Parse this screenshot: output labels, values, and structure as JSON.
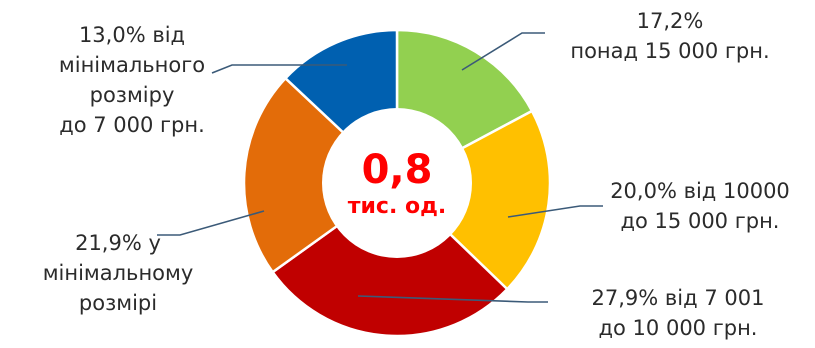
{
  "chart_data": {
    "type": "pie",
    "variant": "donut",
    "start_angle_deg": 0,
    "direction": "clockwise",
    "slices": [
      {
        "value": 17.2,
        "color": "#92d050",
        "label_lines": [
          "17,2%",
          "понад 15 000 грн."
        ]
      },
      {
        "value": 20.0,
        "color": "#ffc000",
        "label_lines": [
          "20,0% від 10000",
          "до 15 000 грн."
        ]
      },
      {
        "value": 27.9,
        "color": "#c00000",
        "label_lines": [
          "27,9% від 7 001",
          "до 10 000 грн."
        ]
      },
      {
        "value": 21.9,
        "color": "#e36c09",
        "label_lines": [
          "21,9% у",
          "мінімальному",
          "розмірі"
        ]
      },
      {
        "value": 13.0,
        "color": "#0060b0",
        "label_lines": [
          "13,0% від",
          "мінімального",
          "розміру",
          "до 7 000 грн."
        ]
      }
    ],
    "center": {
      "value": "0,8",
      "unit": "тис. од.",
      "color": "#ff0000"
    },
    "leader_line_color": "#3b5a78"
  }
}
